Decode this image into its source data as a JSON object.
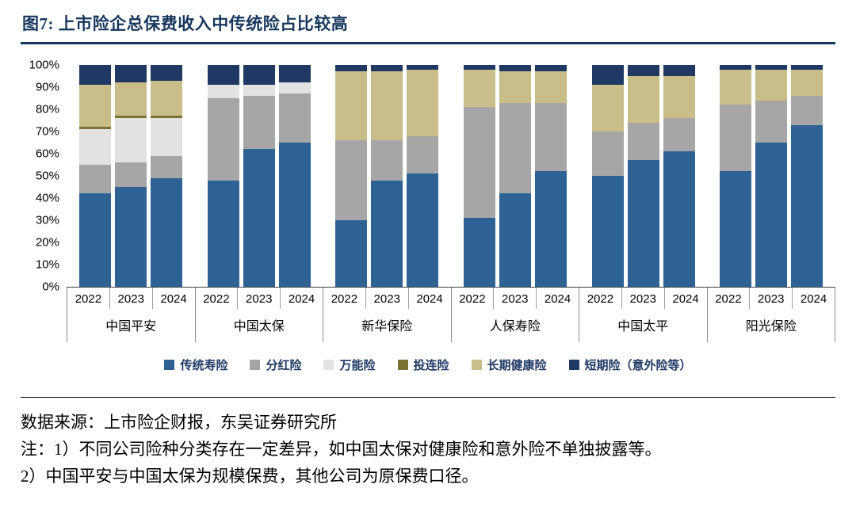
{
  "title": "图7:  上市险企总保费收入中传统险占比较高",
  "colors": {
    "title_accent": "#17365D",
    "axis_line": "#404040"
  },
  "chart_data": {
    "type": "bar",
    "stacked": true,
    "unit": "%",
    "ylim": [
      0,
      100
    ],
    "grid": false,
    "legend_position": "bottom",
    "y_ticks": [
      "100%",
      "90%",
      "80%",
      "70%",
      "60%",
      "50%",
      "40%",
      "30%",
      "20%",
      "10%",
      "0%"
    ],
    "groups": [
      "中国平安",
      "中国太保",
      "新华保险",
      "人保寿险",
      "中国太平",
      "阳光保险"
    ],
    "years": [
      "2022",
      "2023",
      "2024"
    ],
    "series": [
      {
        "name": "传统寿险",
        "color": "#2E6194",
        "values": [
          [
            42,
            45,
            49
          ],
          [
            48,
            62,
            65
          ],
          [
            30,
            48,
            51
          ],
          [
            31,
            42,
            52
          ],
          [
            50,
            57,
            61
          ],
          [
            52,
            65,
            73
          ]
        ]
      },
      {
        "name": "分红险",
        "color": "#A6A6A6",
        "values": [
          [
            13,
            11,
            10
          ],
          [
            37,
            24,
            22
          ],
          [
            36,
            18,
            17
          ],
          [
            50,
            41,
            31
          ],
          [
            20,
            17,
            15
          ],
          [
            30,
            19,
            13
          ]
        ]
      },
      {
        "name": "万能险",
        "color": "#E2E2E2",
        "values": [
          [
            16,
            20,
            17
          ],
          [
            6,
            5,
            5
          ],
          [
            0,
            0,
            0
          ],
          [
            0,
            0,
            0
          ],
          [
            0,
            0,
            0
          ],
          [
            0,
            0,
            0
          ]
        ]
      },
      {
        "name": "投连险",
        "color": "#7A7233",
        "values": [
          [
            1,
            1,
            1
          ],
          [
            0,
            0,
            0
          ],
          [
            0,
            0,
            0
          ],
          [
            0,
            0,
            0
          ],
          [
            0,
            0,
            0
          ],
          [
            0,
            0,
            0
          ]
        ]
      },
      {
        "name": "长期健康险",
        "color": "#C9BD89",
        "values": [
          [
            19,
            15,
            16
          ],
          [
            0,
            0,
            0
          ],
          [
            31,
            31,
            30
          ],
          [
            17,
            14,
            14
          ],
          [
            21,
            21,
            19
          ],
          [
            16,
            14,
            12
          ]
        ]
      },
      {
        "name": "短期险（意外险等）",
        "color": "#1F3864",
        "values": [
          [
            9,
            8,
            7
          ],
          [
            9,
            9,
            8
          ],
          [
            3,
            3,
            2
          ],
          [
            2,
            3,
            3
          ],
          [
            9,
            5,
            5
          ],
          [
            2,
            2,
            2
          ]
        ]
      }
    ]
  },
  "footer": {
    "source": "数据来源：上市险企财报，东吴证券研究所",
    "note1": "注：1）不同公司险种分类存在一定差异，如中国太保对健康险和意外险不单独披露等。",
    "note2": "2）中国平安与中国太保为规模保费，其他公司为原保费口径。"
  }
}
